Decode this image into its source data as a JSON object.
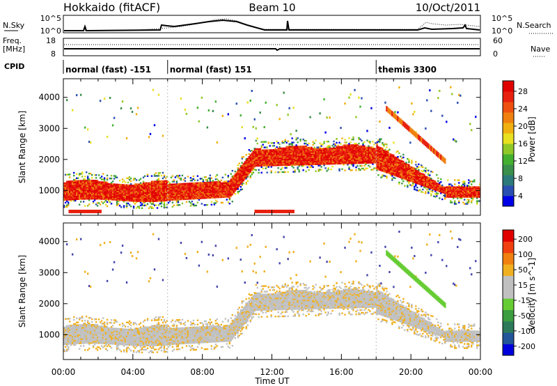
{
  "header": {
    "station": "Hokkaido (fitACF)",
    "beam": "Beam 10",
    "date": "10/Oct/2011"
  },
  "status_rows": {
    "nsky_label": "N.Sky",
    "nsky_ticks": [
      "10^5",
      "10^0"
    ],
    "nsearch_label": "N.Search",
    "nsearch_ticks": [
      "10^5",
      "10^0"
    ],
    "freq_label_1": "Freq.",
    "freq_label_2": "[MHz]",
    "freq_ticks": [
      "18",
      "8"
    ],
    "nave_label": "Nave",
    "nave_ticks": [
      "60",
      "0"
    ],
    "cpid_label": "CPID",
    "cpid_segments": [
      {
        "label": "normal (fast) -151",
        "start_h": 0,
        "end_h": 6
      },
      {
        "label": "normal (fast) 151",
        "start_h": 6,
        "end_h": 18
      },
      {
        "label": "themis 3300",
        "start_h": 18,
        "end_h": 24
      }
    ]
  },
  "colorbars": {
    "power": {
      "title": "Power [dB]",
      "ticks": [
        "28",
        "24",
        "20",
        "16",
        "12",
        "8",
        "4"
      ],
      "colors": [
        "#0000e6",
        "#2b4fb0",
        "#2c7a7a",
        "#3a8f4a",
        "#44b030",
        "#90c828",
        "#e8e020",
        "#f0b010",
        "#f08010",
        "#ee5010",
        "#e82010",
        "#e00000"
      ]
    },
    "velocity": {
      "title": "Velocity [m s^-1]",
      "ticks": [
        "200",
        "100",
        "50",
        "15",
        "-15",
        "-50",
        "-100",
        "-200"
      ],
      "colors": [
        "#0000dd",
        "#225599",
        "#2c7a5a",
        "#3c9c40",
        "#66cc33",
        "#c0c0c0",
        "#c0c0c0",
        "#f0b020",
        "#f08010",
        "#f04010",
        "#e00000"
      ]
    }
  },
  "chart_data": [
    {
      "type": "heatmap",
      "title": "Beam 10",
      "panel": "power",
      "xlabel": "Time UT",
      "ylabel": "Slant Range [km]",
      "x_ticks": [
        "00:00",
        "04:00",
        "08:00",
        "12:00",
        "16:00",
        "20:00",
        "00:00"
      ],
      "y_ticks": [
        "1000",
        "2000",
        "3000",
        "4000"
      ],
      "xlim": [
        0,
        24
      ],
      "ylim": [
        200,
        4600
      ],
      "colorbar": {
        "label": "Power [dB]",
        "range": [
          0,
          30
        ]
      },
      "echo_bands": [
        {
          "t": [
            0,
            6
          ],
          "range_km": [
            700,
            1500
          ],
          "power_db": 28
        },
        {
          "t": [
            6,
            10
          ],
          "range_km": [
            700,
            1250
          ],
          "power_db": 28
        },
        {
          "t": [
            10,
            18
          ],
          "range_km": [
            1700,
            2500
          ],
          "power_db": 26
        },
        {
          "t": [
            18,
            24
          ],
          "range_km": [
            800,
            2400
          ],
          "power_db": 24
        }
      ]
    },
    {
      "type": "heatmap",
      "panel": "velocity",
      "xlabel": "Time UT",
      "ylabel": "Slant Range [km]",
      "x_ticks": [
        "00:00",
        "04:00",
        "08:00",
        "12:00",
        "16:00",
        "20:00",
        "00:00"
      ],
      "y_ticks": [
        "1000",
        "2000",
        "3000",
        "4000"
      ],
      "xlim": [
        0,
        24
      ],
      "ylim": [
        200,
        4600
      ],
      "colorbar": {
        "label": "Velocity [m s^-1]",
        "range": [
          -250,
          250
        ]
      },
      "echo_bands": [
        {
          "t": [
            0,
            10
          ],
          "range_km": [
            700,
            1500
          ],
          "velocity_ms": 0
        },
        {
          "t": [
            10,
            18
          ],
          "range_km": [
            1700,
            2500
          ],
          "velocity_ms": 0
        },
        {
          "t": [
            18,
            24
          ],
          "range_km": [
            800,
            2400
          ],
          "velocity_ms": 0
        }
      ]
    }
  ]
}
